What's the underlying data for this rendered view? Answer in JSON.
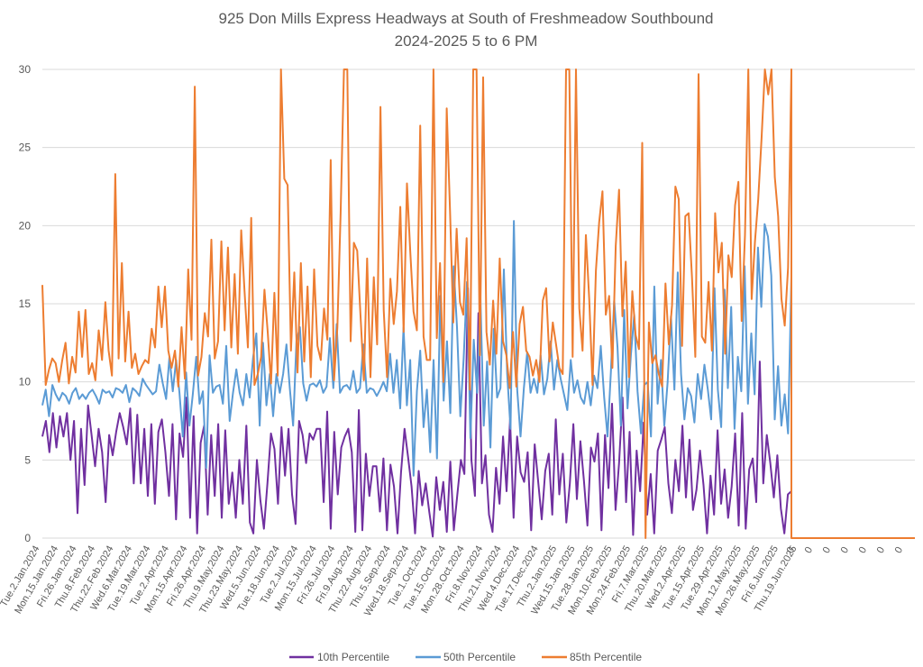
{
  "chart_data": {
    "type": "line",
    "title": "925 Don Mills Express Headways at South of Freshmeadow Southbound",
    "subtitle": "2024-2025 5 to 6 PM",
    "xlabel": "",
    "ylabel": "",
    "ylim": [
      0,
      30
    ],
    "yticks": [
      0,
      5,
      10,
      15,
      20,
      25,
      30
    ],
    "grid": true,
    "legend_position": "bottom",
    "x_tick_labels": [
      "Tue.2.Jan.2024",
      "Mon.15.Jan.2024",
      "Fri.26.Jan.2024",
      "Thu.8.Feb.2024",
      "Thu.22.Feb.2024",
      "Wed.6.Mar.2024",
      "Tue.19.Mar.2024",
      "Tue.2.Apr.2024",
      "Mon.15.Apr.2024",
      "Fri.26.Apr.2024",
      "Thu.9.May.2024",
      "Thu.23.May.2024",
      "Wed.5.Jun.2024",
      "Tue.18.Jun.2024",
      "Tue.2.Jul.2024",
      "Mon.15.Jul.2024",
      "Fri.26.Jul.2024",
      "Fri.9.Aug.2024",
      "Thu.22.Aug.2024",
      "Thu.5.Sep.2024",
      "Wed.18.Sep.2024",
      "Tue.1.Oct.2024",
      "Tue.15.Oct.2024",
      "Mon.28.Oct.2024",
      "Fri.8.Nov.2024",
      "Thu.21.Nov.2024",
      "Wed.4.Dec.2024",
      "Tue.17.Dec.2024",
      "Thu.2.Jan.2025",
      "Wed.15.Jan.2025",
      "Tue.28.Jan.2025",
      "Mon.10.Feb.2025",
      "Mon.24.Feb.2025",
      "Fri.7.Mar.2025",
      "Thu.20.Mar.2025",
      "Wed.2.Apr.2025",
      "Tue.15.Apr.2025",
      "Tue.29.Apr.2025",
      "Mon.12.May.2025",
      "Mon.26.May.2025",
      "Fri.6.Jun.2025",
      "Thu.19.Jun.2025",
      "0",
      "0",
      "0",
      "0",
      "0",
      "0",
      "0"
    ],
    "series": [
      {
        "name": "10th Percentile",
        "color": "#7030a0",
        "values": [
          6.5,
          7.5,
          5.5,
          8,
          5.8,
          7.8,
          6.5,
          8,
          5,
          7.5,
          1.6,
          7,
          3.4,
          8.5,
          6.6,
          4.6,
          7,
          5.5,
          2.3,
          6.6,
          5.3,
          6.8,
          8,
          7.1,
          6,
          8.3,
          3.5,
          7.9,
          3.5,
          7,
          2.7,
          7.3,
          2.2,
          6.8,
          7.6,
          5.5,
          2.7,
          7.3,
          1.2,
          6.7,
          5.2,
          9,
          1.3,
          7.8,
          0.3,
          6.1,
          7.2,
          1.5,
          6.6,
          2.7,
          7.3,
          1.3,
          6.9,
          2.2,
          4.2,
          1.3,
          5,
          2.2,
          7.2,
          1,
          0.3,
          5,
          2.4,
          0.6,
          3.5,
          6.7,
          5.7,
          2.2,
          7.1,
          4,
          7,
          2.8,
          0.9,
          7.5,
          6.6,
          4.8,
          6.7,
          6.3,
          7,
          7,
          2.3,
          8.1,
          0.6,
          6.8,
          2.8,
          5.8,
          6.5,
          7,
          5.5,
          0.4,
          8.2,
          0.5,
          5.4,
          2.7,
          4.6,
          4.6,
          1.7,
          5.1,
          0.5,
          4.7,
          3.3,
          0.3,
          4.2,
          7,
          5.2,
          3.3,
          0.3,
          4.3,
          2.1,
          3.5,
          1.7,
          0.1,
          3.9,
          1.8,
          3.6,
          0.4,
          4.9,
          0.5,
          2.8,
          5,
          4.1,
          16,
          5,
          2.7,
          14.4,
          3.5,
          5.3,
          1.5,
          0.4,
          4.5,
          2.2,
          6.5,
          3,
          7.6,
          1.3,
          6.5,
          4.2,
          3.6,
          5.5,
          0.5,
          6,
          3.6,
          1.2,
          4.3,
          5.4,
          1.5,
          7.6,
          2.8,
          5.4,
          1,
          3.5,
          7.3,
          2.5,
          6.2,
          3.7,
          0.8,
          5.8,
          4.9,
          6.7,
          0.5,
          6.6,
          3.2,
          8.6,
          1.8,
          4.8,
          9,
          2.3,
          6.8,
          0.2,
          5.6,
          3,
          7.4,
          1.5,
          4.1,
          0.3,
          5.6,
          6.3,
          7.1,
          3.5,
          1.6,
          5,
          3,
          7.2,
          2.6,
          6.3,
          1.8,
          3.1,
          5.6,
          3.4,
          0.3,
          4,
          1.5,
          6.9,
          2.2,
          4.4,
          1.3,
          3.3,
          6.7,
          0.8,
          8,
          0.6,
          4.4,
          5.1,
          2.3,
          11.3,
          3.5,
          6.6,
          4.8,
          2.6,
          5.3,
          1.9,
          0.3,
          2.8,
          3
        ]
      },
      {
        "name": "50th Percentile",
        "color": "#5b9bd5",
        "values": [
          8.5,
          9.5,
          7.8,
          9.8,
          9.2,
          8.8,
          9.3,
          9.1,
          8.6,
          9.3,
          9.6,
          8.9,
          9.2,
          8.9,
          9.3,
          9.5,
          9.1,
          8.6,
          9.5,
          9.3,
          9.4,
          9,
          9.6,
          9.5,
          9.3,
          9.8,
          8.7,
          9.6,
          9.4,
          9.1,
          10.2,
          9.8,
          9.5,
          9.2,
          9.4,
          11.1,
          9.9,
          8.9,
          11.6,
          9.4,
          11.4,
          9.3,
          6.5,
          10.6,
          7.2,
          9.2,
          11.6,
          8.6,
          9.4,
          4.5,
          11.7,
          9.3,
          9.7,
          9.8,
          8.6,
          12.3,
          7.5,
          9.3,
          10.8,
          9.3,
          8.5,
          10.5,
          9,
          11.5,
          13.1,
          7.2,
          12.5,
          8.5,
          10.5,
          7.8,
          10.5,
          9.3,
          10.5,
          12.4,
          9.6,
          7.2,
          12.6,
          13.5,
          9.9,
          8.8,
          9.8,
          9.9,
          9.7,
          10.1,
          9.3,
          9.7,
          12.8,
          9.6,
          13.7,
          9.3,
          9.7,
          9.8,
          9.5,
          10.7,
          9.3,
          9.6,
          12.4,
          9.3,
          9.6,
          9.5,
          9.1,
          9.5,
          10,
          9.4,
          11.8,
          9.3,
          11.4,
          8.3,
          13.5,
          8.5,
          11.4,
          4,
          9.4,
          12,
          7.1,
          9.5,
          5.5,
          11.4,
          5.1,
          15.5,
          8.8,
          12.6,
          8,
          17.4,
          13.5,
          7.8,
          11.5,
          16.4,
          6.4,
          12.7,
          9.3,
          15.4,
          7.2,
          11.3,
          5.8,
          13.4,
          9,
          9.6,
          17.2,
          10.5,
          7,
          20.3,
          9.5,
          6.5,
          9.6,
          11.9,
          9.3,
          10.2,
          9.3,
          11.7,
          9.2,
          10.2,
          12.6,
          9.5,
          11.4,
          10.2,
          9.2,
          8.2,
          11.4,
          9.3,
          10.1,
          9,
          8.6,
          10,
          8.5,
          10.4,
          9.6,
          12.3,
          9,
          6.5,
          10.6,
          15.2,
          12.2,
          7.2,
          14.6,
          8.3,
          11.7,
          14.3,
          9.4,
          6.7,
          9.8,
          10,
          6.5,
          16.1,
          8.6,
          11.4,
          7.2,
          10,
          14.2,
          9.5,
          17,
          10.5,
          7.6,
          9.6,
          9.1,
          7.4,
          10.5,
          8.9,
          11.1,
          9.5,
          7.6,
          16,
          9.5,
          7.1,
          15.9,
          9.6,
          14.8,
          7,
          11.6,
          9.4,
          17.4,
          8.6,
          13.1,
          9.2,
          18.6,
          14.8,
          20.1,
          19.3,
          16.8,
          7.6,
          11,
          7.2,
          9.2,
          6.7,
          16.7
        ]
      },
      {
        "name": "85th Percentile",
        "color": "#ed7d31",
        "values": [
          16.2,
          9.8,
          10.8,
          11.5,
          11.2,
          10,
          11.4,
          12.5,
          9.9,
          11.6,
          10.6,
          14.5,
          11.6,
          14.6,
          10.5,
          11.2,
          10.1,
          13.3,
          11.4,
          15.1,
          12,
          10.4,
          23.3,
          11.5,
          17.6,
          11.3,
          14.5,
          10.9,
          11.8,
          10.5,
          11,
          11.4,
          11.2,
          13.4,
          12.2,
          16.1,
          13.5,
          16.1,
          12,
          10.9,
          12,
          9.7,
          13.5,
          10.2,
          17.2,
          12.7,
          28.9,
          10.4,
          11.6,
          14.4,
          12.9,
          19.1,
          11.5,
          12.6,
          19,
          13.3,
          18.6,
          12.2,
          16.9,
          11.8,
          19.7,
          15.8,
          12.2,
          20.5,
          9.8,
          10.5,
          11.6,
          15.9,
          13.2,
          9.9,
          15.7,
          10.4,
          30,
          23,
          22.6,
          12,
          17,
          10.6,
          17.6,
          11.3,
          16.1,
          10.3,
          17.2,
          12.3,
          11.4,
          14.7,
          12.7,
          24.2,
          10.1,
          13.5,
          20.8,
          30,
          30,
          12.6,
          18.9,
          18.4,
          14.2,
          10.1,
          17.9,
          10.3,
          16.7,
          12.4,
          27.6,
          14.6,
          10.3,
          16.6,
          13.7,
          15.8,
          21.2,
          13.2,
          22.7,
          18.4,
          14.5,
          13.3,
          26.4,
          12.9,
          11.4,
          11.4,
          30,
          12.8,
          17.6,
          10,
          27.5,
          20.9,
          13.8,
          19.8,
          15.1,
          14.3,
          19.2,
          9.5,
          30,
          30,
          11.7,
          29.5,
          13.2,
          11.1,
          15.2,
          11.8,
          17.9,
          12.6,
          11.7,
          9.6,
          13.2,
          9.7,
          13.7,
          14.8,
          12,
          11.6,
          10.4,
          11.4,
          10,
          15.2,
          16,
          11.3,
          13.8,
          12.4,
          10.9,
          10.5,
          30,
          30,
          11.6,
          30,
          14.7,
          12,
          19.4,
          15.3,
          9.8,
          17.1,
          20.2,
          22.2,
          14.3,
          15.5,
          10.9,
          18.7,
          22.3,
          14.2,
          17.7,
          10.3,
          15.8,
          13,
          12.1,
          25.3,
          0,
          13.8,
          11.2,
          11.7,
          10.5,
          9.7,
          16.3,
          12.4,
          14.9,
          22.5,
          21.7,
          12.3,
          20.6,
          20.8,
          16.7,
          11.6,
          29.7,
          12.9,
          12.5,
          16.4,
          12,
          20.8,
          17,
          18.9,
          11.8,
          18.1,
          16.7,
          21.3,
          22.8,
          13.9,
          19.4,
          30,
          15.3,
          19,
          21.7,
          25.6,
          30,
          28.4,
          30,
          23.1,
          20.6,
          15.3,
          13.6,
          17.3,
          30
        ]
      }
    ],
    "trailing_zero_categories": 8
  },
  "legend": [
    {
      "label": "10th Percentile",
      "color": "#7030a0"
    },
    {
      "label": "50th Percentile",
      "color": "#5b9bd5"
    },
    {
      "label": "85th Percentile",
      "color": "#ed7d31"
    }
  ]
}
